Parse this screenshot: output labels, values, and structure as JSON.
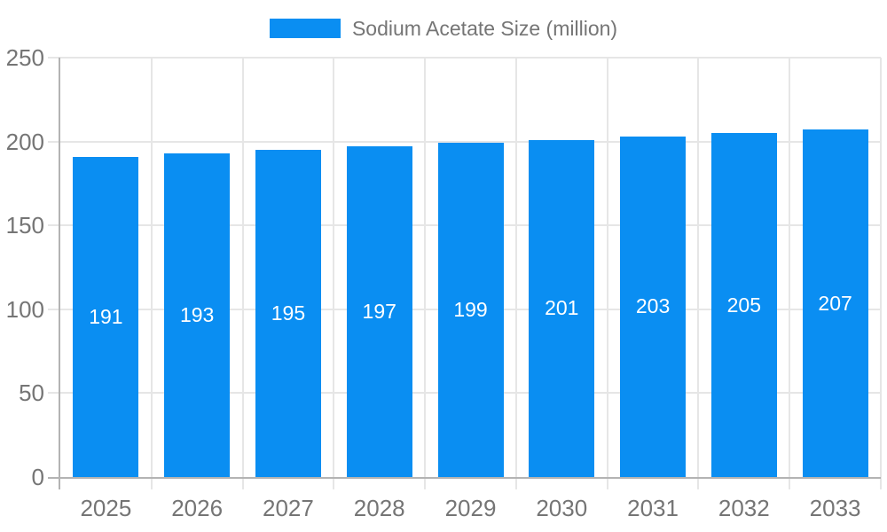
{
  "legend": {
    "label": "Sodium Acetate Size (million)"
  },
  "chart_data": {
    "type": "bar",
    "title": "",
    "categories": [
      "2025",
      "2026",
      "2027",
      "2028",
      "2029",
      "2030",
      "2031",
      "2032",
      "2033"
    ],
    "series": [
      {
        "name": "Sodium Acetate Size (million)",
        "color": "#0a8ef2",
        "values": [
          191,
          193,
          195,
          197,
          199,
          201,
          203,
          205,
          207
        ]
      }
    ],
    "value_labels": [
      "191",
      "193",
      "195",
      "197",
      "199",
      "201",
      "203",
      "205",
      "207"
    ],
    "xlabel": "",
    "ylabel": "",
    "ylim": [
      0,
      250
    ],
    "yticks": [
      0,
      50,
      100,
      150,
      200,
      250
    ],
    "grid": true,
    "legend_position": "top",
    "value_label_position": "inside-center"
  },
  "colors": {
    "bar": "#0a8ef2",
    "grid": "#e6e6e6",
    "axis": "#b3b3b3",
    "tick_text": "#757575",
    "legend_text": "#757575",
    "value_label_text": "#ffffff",
    "background": "#ffffff"
  }
}
